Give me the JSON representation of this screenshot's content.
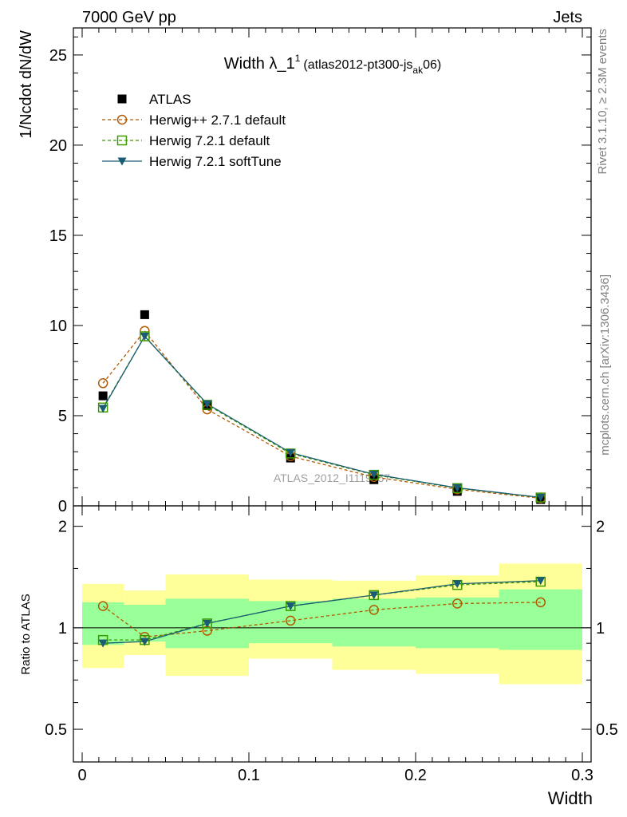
{
  "header": {
    "left": "7000 GeV pp",
    "right": "Jets"
  },
  "side_text": {
    "rivet": "Rivet 3.1.10, ≥ 2.3M events",
    "mcplots": "mcplots.cern.ch [arXiv:1306.3436]"
  },
  "watermark": "ATLAS_2012_I1119557",
  "chart_data": [
    {
      "type": "line",
      "panel": "main",
      "title_main": "Width λ_1",
      "title_sup": "1",
      "title_detail": "(atlas2012-pt300-js",
      "title_sub": "ak",
      "title_end": "06)",
      "ylabel": "1/Ncdot dN/dW",
      "xlim": [
        0,
        0.3
      ],
      "ylim": [
        0,
        26.5
      ],
      "y_ticks": [
        0,
        5,
        10,
        15,
        20,
        25
      ],
      "y_tick_labels": [
        "0",
        "5",
        "10",
        "15",
        "20",
        "25"
      ],
      "x": [
        0.0125,
        0.0375,
        0.075,
        0.125,
        0.175,
        0.225,
        0.275
      ],
      "bin_edges": [
        0,
        0.025,
        0.05,
        0.1,
        0.15,
        0.2,
        0.25,
        0.3
      ],
      "legend_position": "top-left",
      "series": [
        {
          "name": "ATLAS",
          "marker": "filled-square",
          "color": "#000000",
          "values": [
            6.1,
            10.6,
            5.55,
            2.65,
            1.45,
            0.8,
            0.35
          ]
        },
        {
          "name": "Herwig++ 2.7.1 default",
          "marker": "open-circle",
          "line": "dashed",
          "color": "#b35900",
          "values": [
            6.8,
            9.7,
            5.35,
            2.75,
            1.6,
            0.92,
            0.42
          ]
        },
        {
          "name": "Herwig 7.2.1 default",
          "marker": "open-square",
          "line": "dashed",
          "color": "#3d9900",
          "values": [
            5.45,
            9.4,
            5.6,
            2.9,
            1.72,
            0.98,
            0.46
          ]
        },
        {
          "name": "Herwig 7.2.1 softTune",
          "marker": "filled-triangle-down",
          "line": "solid",
          "color": "#1a5c73",
          "values": [
            5.4,
            9.4,
            5.65,
            2.95,
            1.75,
            1.0,
            0.47
          ]
        }
      ]
    },
    {
      "type": "line",
      "panel": "ratio",
      "ylabel": "Ratio to ATLAS",
      "xlabel": "Width",
      "xlim": [
        0,
        0.3
      ],
      "ylim": [
        0.4,
        2.3
      ],
      "y_ticks": [
        0.5,
        1,
        2
      ],
      "y_tick_labels": [
        "0.5",
        "1",
        "2"
      ],
      "x_ticks": [
        0,
        0.1,
        0.2,
        0.3
      ],
      "x_tick_labels": [
        "0",
        "0.1",
        "0.2",
        "0.3"
      ],
      "bin_edges": [
        0,
        0.025,
        0.05,
        0.1,
        0.15,
        0.2,
        0.25,
        0.3
      ],
      "x": [
        0.0125,
        0.0375,
        0.075,
        0.125,
        0.175,
        0.225,
        0.275
      ],
      "band_stat": {
        "color": "#99ff99",
        "low": [
          0.89,
          0.91,
          0.87,
          0.9,
          0.88,
          0.87,
          0.86
        ],
        "high": [
          1.19,
          1.17,
          1.22,
          1.2,
          1.22,
          1.23,
          1.3
        ]
      },
      "band_total": {
        "color": "#ffff99",
        "low": [
          0.76,
          0.83,
          0.72,
          0.81,
          0.75,
          0.73,
          0.68
        ],
        "high": [
          1.35,
          1.29,
          1.44,
          1.39,
          1.38,
          1.43,
          1.55
        ]
      },
      "series": [
        {
          "name": "Herwig++ 2.7.1 default",
          "marker": "open-circle",
          "line": "dashed",
          "color": "#b35900",
          "values": [
            1.16,
            0.94,
            0.98,
            1.05,
            1.13,
            1.18,
            1.19
          ]
        },
        {
          "name": "Herwig 7.2.1 default",
          "marker": "open-square",
          "line": "dashed",
          "color": "#3d9900",
          "values": [
            0.92,
            0.92,
            1.03,
            1.16,
            1.25,
            1.34,
            1.37
          ]
        },
        {
          "name": "Herwig 7.2.1 softTune",
          "marker": "filled-triangle-down",
          "line": "solid",
          "color": "#1a5c73",
          "values": [
            0.9,
            0.91,
            1.03,
            1.16,
            1.25,
            1.35,
            1.38
          ]
        }
      ]
    }
  ]
}
